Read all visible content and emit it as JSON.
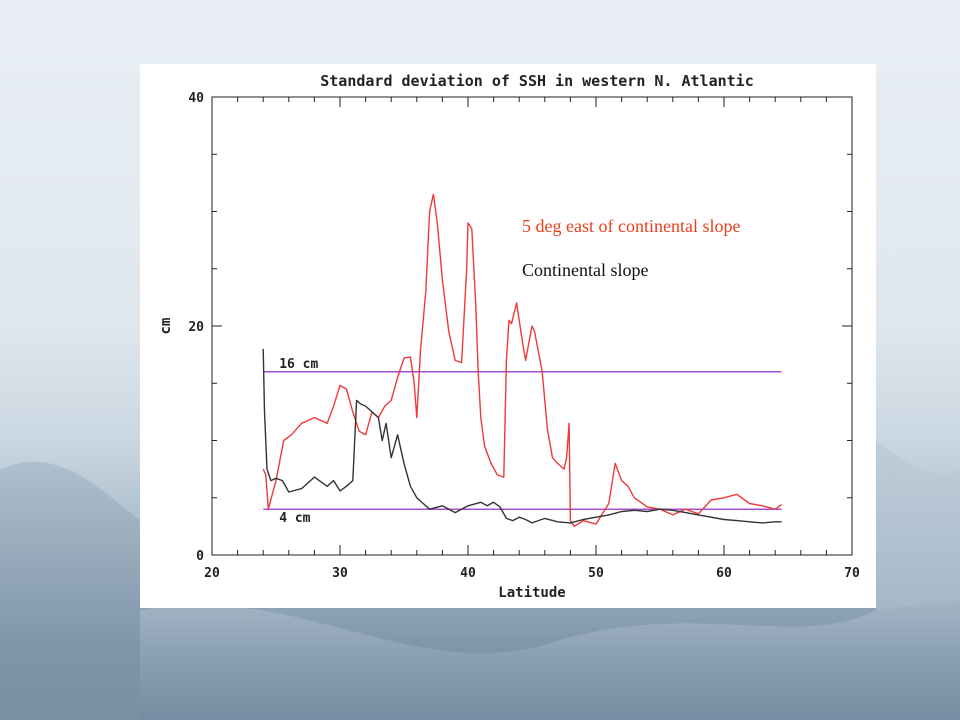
{
  "slide": {
    "background_color": "#dfe7ee"
  },
  "colors": {
    "red_series": "#e8401c",
    "line_red": "#ee3a3a",
    "line_black": "#333333",
    "reference_line": "#a84fd0",
    "axis": "#222222"
  },
  "legend": {
    "east_label": "5 deg east of continental slope",
    "slope_label": "Continental slope"
  },
  "chart_data": {
    "type": "line",
    "title": "Standard deviation of SSH in western N. Atlantic",
    "xlabel": "Latitude",
    "ylabel": "cm",
    "xlim": [
      20,
      70
    ],
    "ylim": [
      0,
      40
    ],
    "x_ticks": [
      20,
      30,
      40,
      50,
      60,
      70
    ],
    "y_ticks": [
      0,
      20,
      40
    ],
    "grid": false,
    "reference_lines": [
      {
        "label": "16 cm",
        "y": 16,
        "x": [
          24,
          64.5
        ]
      },
      {
        "label": "4 cm",
        "y": 4,
        "x": [
          24,
          64.5
        ]
      }
    ],
    "series": [
      {
        "name": "5 deg east of continental slope",
        "color": "#ee3a3a",
        "x": [
          24.0,
          24.2,
          24.4,
          25.0,
          25.6,
          26.2,
          27.0,
          28.0,
          29.0,
          29.5,
          30.0,
          30.5,
          31.0,
          31.5,
          32.0,
          32.5,
          33.0,
          33.5,
          34.0,
          34.5,
          35.0,
          35.5,
          35.8,
          36.0,
          36.3,
          36.7,
          37.0,
          37.3,
          37.6,
          38.0,
          38.5,
          39.0,
          39.5,
          39.9,
          40.0,
          40.3,
          40.6,
          40.8,
          41.0,
          41.3,
          41.8,
          42.3,
          42.8,
          43.0,
          43.2,
          43.4,
          43.8,
          44.2,
          44.5,
          45.0,
          45.2,
          45.8,
          46.2,
          46.6,
          47.0,
          47.5,
          47.7,
          47.9,
          48.0,
          48.3,
          49.0,
          50.0,
          50.5,
          51.0,
          51.5,
          52.0,
          52.5,
          53.0,
          53.5,
          54.0,
          55.0,
          56.0,
          57.0,
          58.0,
          59.0,
          60.0,
          61.0,
          62.0,
          63.0,
          64.0,
          64.5
        ],
        "y": [
          7.5,
          7.0,
          4.0,
          6.5,
          10.0,
          10.5,
          11.5,
          12.0,
          11.5,
          13.0,
          14.8,
          14.5,
          12.5,
          10.8,
          10.5,
          12.5,
          12.0,
          13.0,
          13.5,
          15.5,
          17.2,
          17.3,
          15.0,
          12.0,
          18.0,
          23.0,
          30.0,
          31.5,
          29.0,
          24.0,
          19.5,
          17.0,
          16.8,
          25.0,
          29.0,
          28.5,
          22.0,
          16.0,
          12.0,
          9.5,
          8.0,
          7.0,
          6.8,
          17.0,
          20.5,
          20.2,
          22.0,
          19.0,
          17.0,
          20.0,
          19.5,
          16.0,
          11.0,
          8.5,
          8.0,
          7.5,
          8.5,
          11.5,
          3.0,
          2.5,
          3.0,
          2.7,
          3.6,
          4.5,
          8.0,
          6.5,
          6.0,
          5.0,
          4.6,
          4.2,
          4.0,
          3.5,
          4.0,
          3.6,
          4.8,
          5.0,
          5.3,
          4.5,
          4.3,
          4.0,
          4.4
        ]
      },
      {
        "name": "Continental slope",
        "color": "#333333",
        "x": [
          24.0,
          24.1,
          24.3,
          24.6,
          25.0,
          25.5,
          26.0,
          27.0,
          28.0,
          29.0,
          29.5,
          30.0,
          30.5,
          31.0,
          31.3,
          31.6,
          32.0,
          32.5,
          33.0,
          33.3,
          33.6,
          34.0,
          34.5,
          35.0,
          35.5,
          36.0,
          36.5,
          37.0,
          38.0,
          39.0,
          40.0,
          41.0,
          41.5,
          42.0,
          42.5,
          43.0,
          43.5,
          44.0,
          44.5,
          45.0,
          46.0,
          47.0,
          48.0,
          49.0,
          50.0,
          51.0,
          52.0,
          53.0,
          54.0,
          55.0,
          56.0,
          57.0,
          58.0,
          59.0,
          60.0,
          61.0,
          62.0,
          63.0,
          64.0,
          64.5
        ],
        "y": [
          18.0,
          12.5,
          7.5,
          6.5,
          6.7,
          6.5,
          5.5,
          5.8,
          6.8,
          6.0,
          6.5,
          5.6,
          6.0,
          6.5,
          13.5,
          13.2,
          13.0,
          12.5,
          12.0,
          10.0,
          11.5,
          8.5,
          10.5,
          8.0,
          6.0,
          5.0,
          4.5,
          4.0,
          4.3,
          3.7,
          4.3,
          4.6,
          4.3,
          4.6,
          4.2,
          3.2,
          3.0,
          3.3,
          3.1,
          2.8,
          3.2,
          2.9,
          2.8,
          3.1,
          3.3,
          3.5,
          3.8,
          3.9,
          3.8,
          4.0,
          3.9,
          3.7,
          3.5,
          3.3,
          3.1,
          3.0,
          2.9,
          2.8,
          2.9,
          2.9
        ]
      }
    ]
  }
}
